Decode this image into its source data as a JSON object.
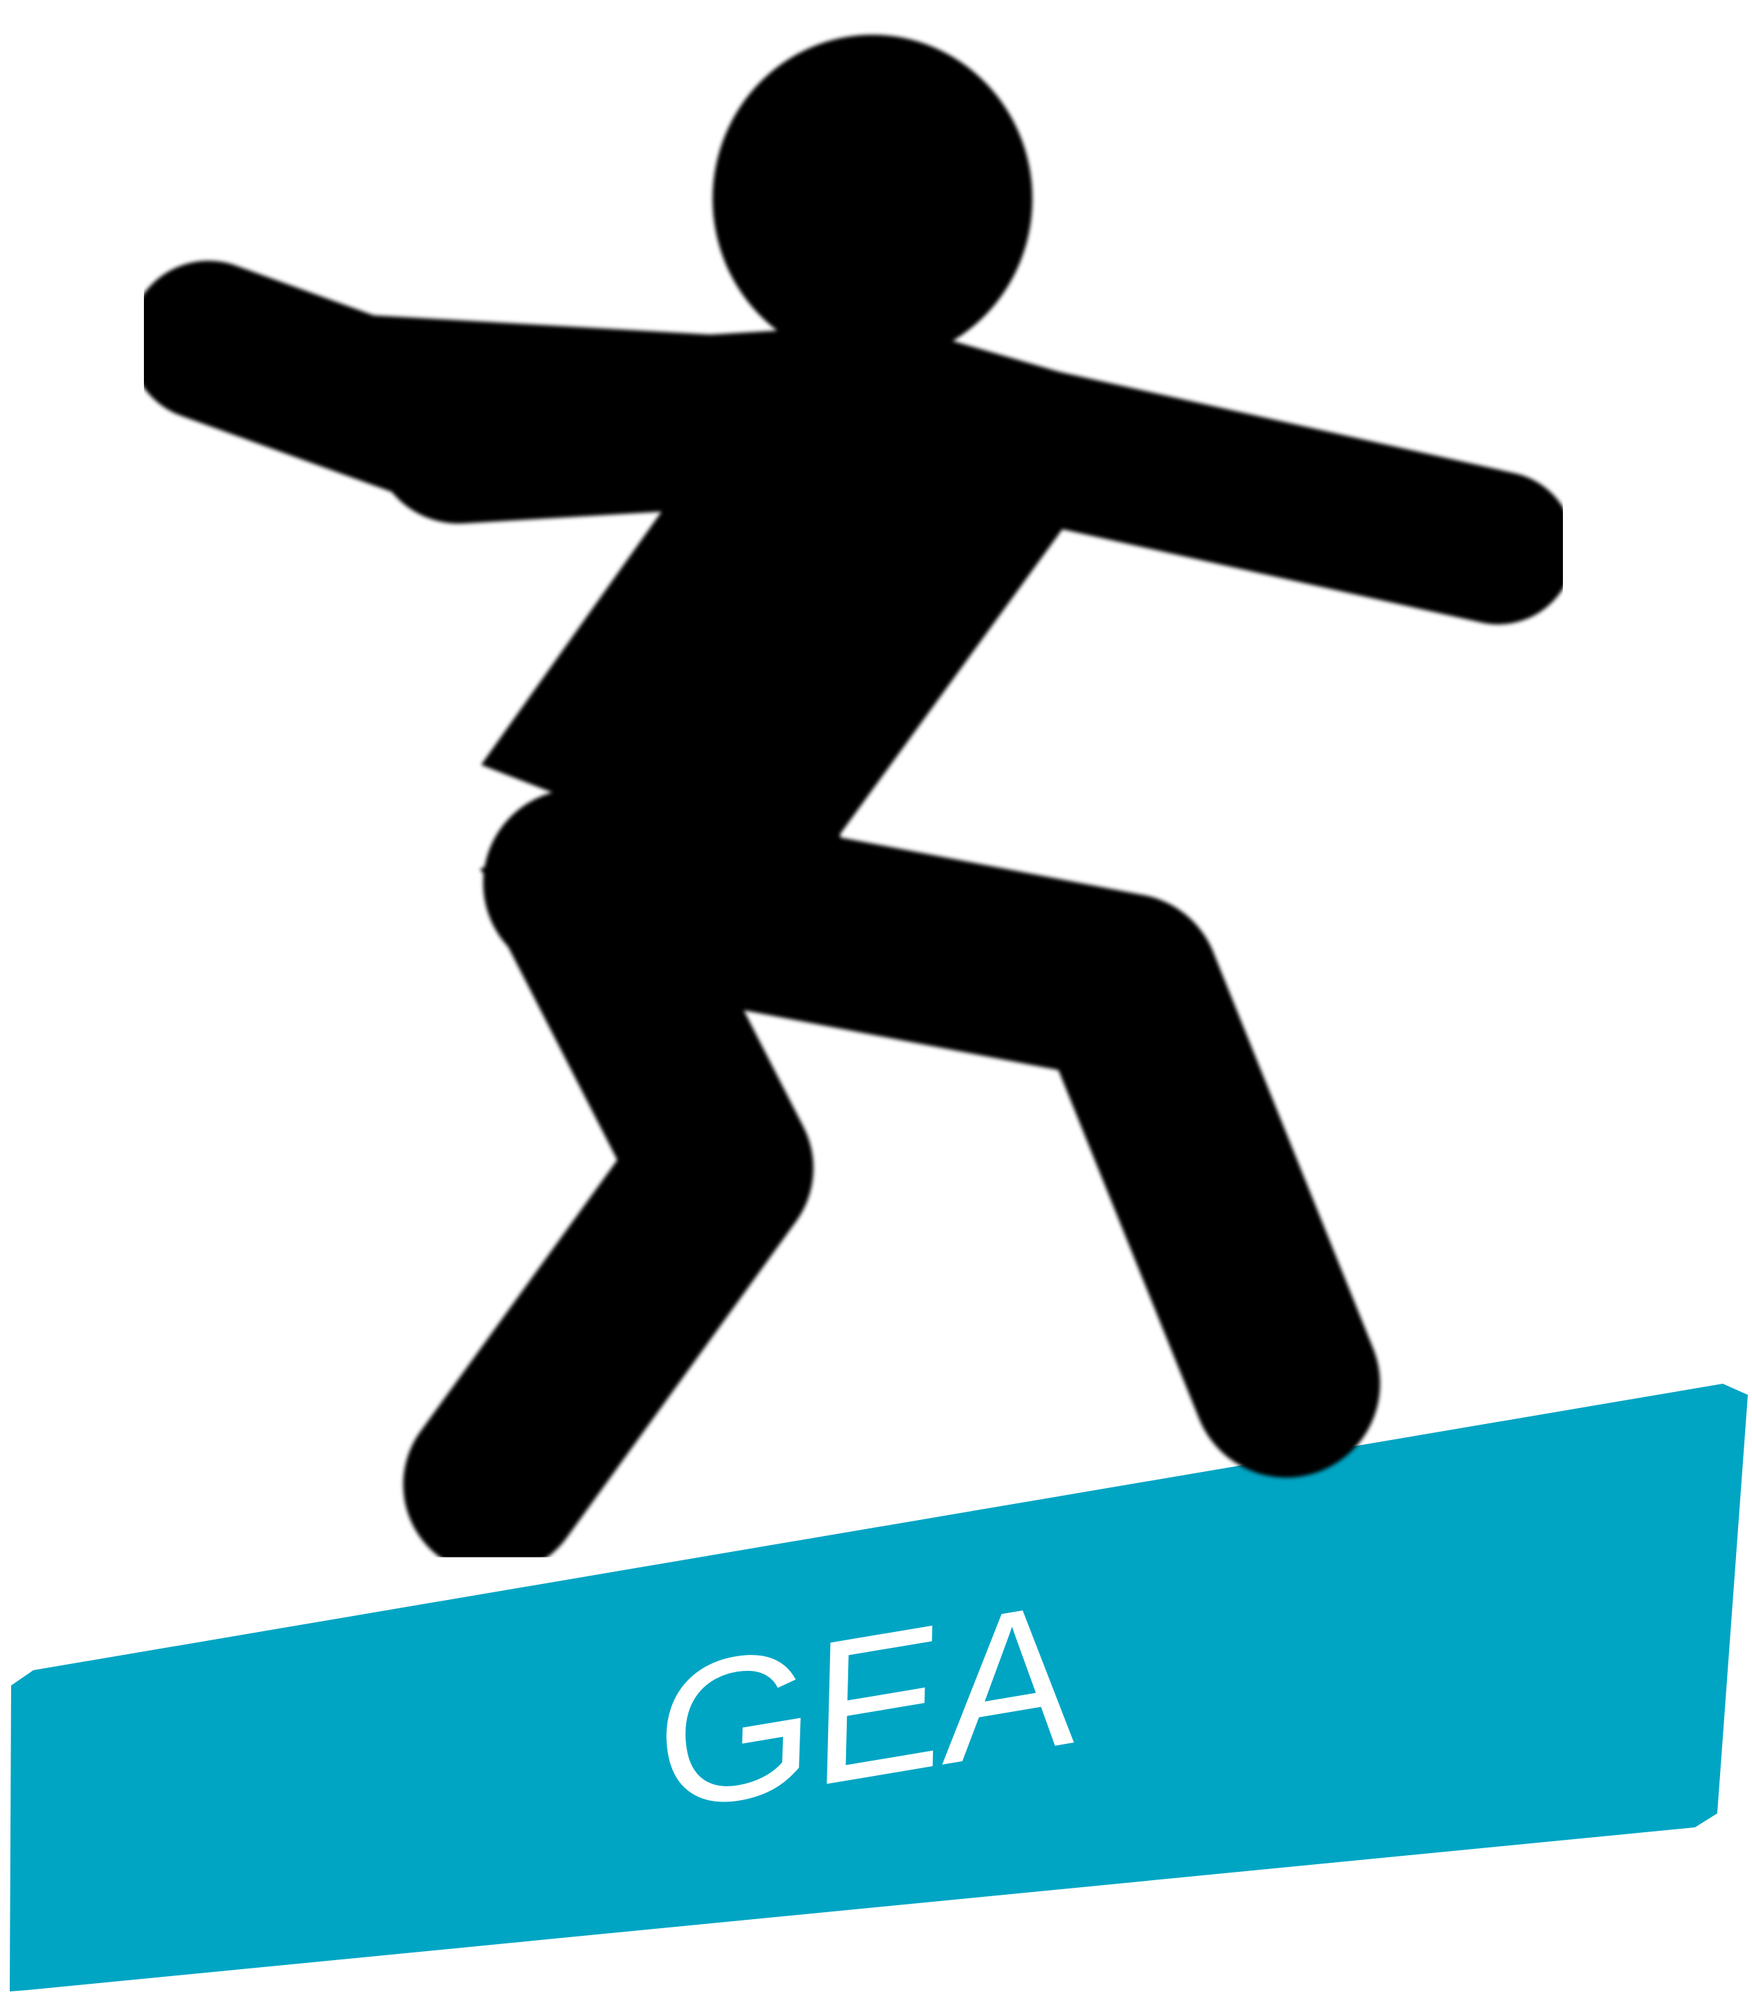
{
  "logo": {
    "text": "GEA",
    "colors": {
      "figure": "#000000",
      "board": "#00a5c4",
      "text": "#ffffff",
      "background": "#ffffff"
    },
    "icons": {
      "figure": "snowboarder-figure-icon",
      "board": "board-banner"
    }
  }
}
